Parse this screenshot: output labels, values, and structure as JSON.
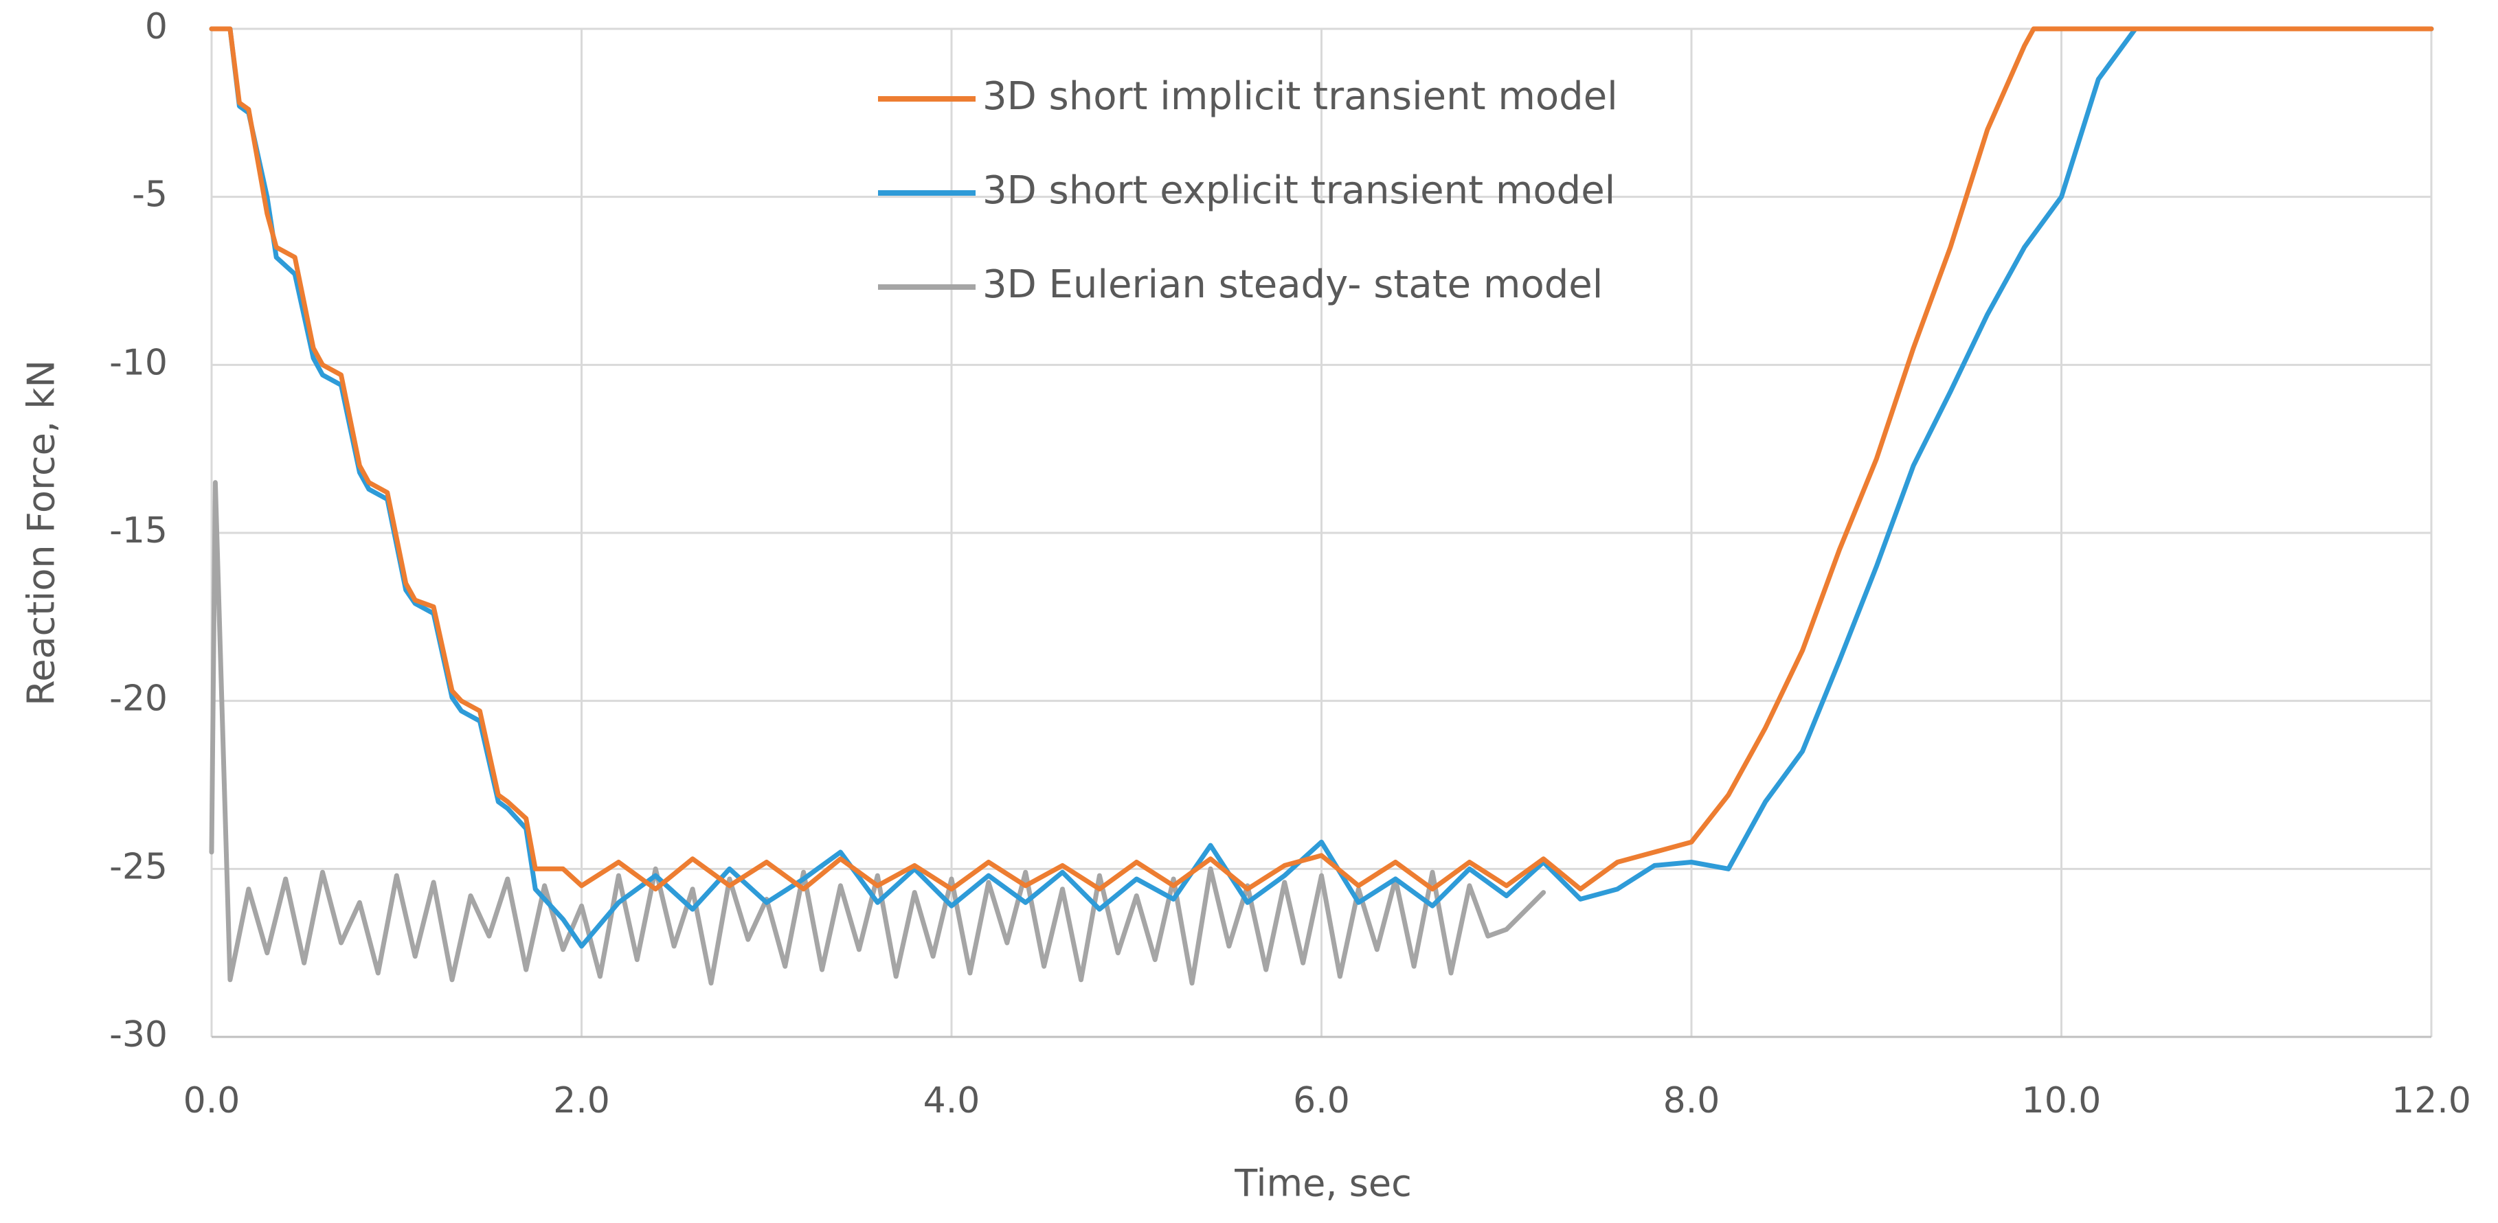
{
  "chart_data": {
    "type": "line",
    "xlabel": "Time, sec",
    "ylabel": "Reaction Force, kN",
    "xlim": [
      0,
      12
    ],
    "ylim": [
      -30,
      0
    ],
    "xticks": [
      {
        "value": 0,
        "label": "0.0"
      },
      {
        "value": 2,
        "label": "2.0"
      },
      {
        "value": 4,
        "label": "4.0"
      },
      {
        "value": 6,
        "label": "6.0"
      },
      {
        "value": 8,
        "label": "8.0"
      },
      {
        "value": 10,
        "label": "10.0"
      },
      {
        "value": 12,
        "label": "12.0"
      }
    ],
    "yticks": [
      0,
      -5,
      -10,
      -15,
      -20,
      -25,
      -30
    ],
    "grid": true,
    "series": [
      {
        "name": "3D short implicit transient model",
        "color": "#ed7d31",
        "x": [
          0,
          0.1,
          0.15,
          0.2,
          0.3,
          0.35,
          0.45,
          0.55,
          0.6,
          0.7,
          0.8,
          0.85,
          0.95,
          1.05,
          1.1,
          1.2,
          1.3,
          1.35,
          1.45,
          1.55,
          1.6,
          1.7,
          1.75,
          1.9,
          2.0,
          2.2,
          2.4,
          2.6,
          2.8,
          3.0,
          3.2,
          3.4,
          3.6,
          3.8,
          4.0,
          4.2,
          4.4,
          4.6,
          4.8,
          5.0,
          5.2,
          5.4,
          5.6,
          5.8,
          6.0,
          6.2,
          6.4,
          6.6,
          6.8,
          7.0,
          7.2,
          7.4,
          7.6,
          7.8,
          8.0,
          8.2,
          8.4,
          8.6,
          8.8,
          9.0,
          9.2,
          9.4,
          9.6,
          9.8,
          9.85,
          12.0
        ],
        "values": [
          0,
          0,
          -2.2,
          -2.4,
          -5.5,
          -6.5,
          -6.8,
          -9.5,
          -10,
          -10.3,
          -13,
          -13.5,
          -13.8,
          -16.5,
          -17,
          -17.2,
          -19.7,
          -20,
          -20.3,
          -22.8,
          -23,
          -23.5,
          -25,
          -25,
          -25.5,
          -24.8,
          -25.6,
          -24.7,
          -25.5,
          -24.8,
          -25.6,
          -24.7,
          -25.5,
          -24.9,
          -25.6,
          -24.8,
          -25.5,
          -24.9,
          -25.6,
          -24.8,
          -25.5,
          -24.7,
          -25.6,
          -24.9,
          -24.6,
          -25.5,
          -24.8,
          -25.6,
          -24.8,
          -25.5,
          -24.7,
          -25.6,
          -24.8,
          -24.5,
          -24.2,
          -22.8,
          -20.8,
          -18.5,
          -15.5,
          -12.8,
          -9.5,
          -6.5,
          -3.0,
          -0.5,
          0,
          0
        ]
      },
      {
        "name": "3D short explicit transient model",
        "color": "#2e9bd8",
        "x": [
          0,
          0.1,
          0.15,
          0.2,
          0.3,
          0.35,
          0.45,
          0.55,
          0.6,
          0.7,
          0.8,
          0.85,
          0.95,
          1.05,
          1.1,
          1.2,
          1.3,
          1.35,
          1.45,
          1.55,
          1.6,
          1.7,
          1.75,
          1.9,
          2.0,
          2.2,
          2.4,
          2.6,
          2.8,
          3.0,
          3.2,
          3.4,
          3.6,
          3.8,
          4.0,
          4.2,
          4.4,
          4.6,
          4.8,
          5.0,
          5.2,
          5.4,
          5.6,
          5.8,
          6.0,
          6.2,
          6.4,
          6.6,
          6.8,
          7.0,
          7.2,
          7.4,
          7.6,
          7.8,
          8.0,
          8.2,
          8.4,
          8.6,
          8.8,
          9.0,
          9.2,
          9.4,
          9.6,
          9.8,
          10.0,
          10.2,
          10.4,
          12.0
        ],
        "values": [
          0,
          0,
          -2.3,
          -2.5,
          -5.0,
          -6.8,
          -7.3,
          -9.8,
          -10.3,
          -10.6,
          -13.2,
          -13.7,
          -14.0,
          -16.7,
          -17.1,
          -17.4,
          -19.9,
          -20.3,
          -20.6,
          -23,
          -23.2,
          -23.8,
          -25.6,
          -26.5,
          -27.3,
          -26.0,
          -25.2,
          -26.2,
          -25.0,
          -26.0,
          -25.3,
          -24.5,
          -26.0,
          -25.0,
          -26.1,
          -25.2,
          -26.0,
          -25.1,
          -26.2,
          -25.3,
          -25.9,
          -24.3,
          -26.0,
          -25.2,
          -24.2,
          -26.0,
          -25.3,
          -26.1,
          -25.0,
          -25.8,
          -24.8,
          -25.9,
          -25.6,
          -24.9,
          -24.8,
          -25.0,
          -23.0,
          -21.5,
          -18.8,
          -16.0,
          -13.0,
          -10.8,
          -8.5,
          -6.5,
          -5.0,
          -1.5,
          0,
          0
        ]
      },
      {
        "name": "3D Eulerian steady- state model",
        "color": "#a5a5a5",
        "x": [
          0,
          0.02,
          0.1,
          0.2,
          0.3,
          0.4,
          0.5,
          0.6,
          0.7,
          0.8,
          0.9,
          1.0,
          1.1,
          1.2,
          1.3,
          1.4,
          1.5,
          1.6,
          1.7,
          1.8,
          1.9,
          2.0,
          2.1,
          2.2,
          2.3,
          2.4,
          2.5,
          2.6,
          2.7,
          2.8,
          2.9,
          3.0,
          3.1,
          3.2,
          3.3,
          3.4,
          3.5,
          3.6,
          3.7,
          3.8,
          3.9,
          4.0,
          4.1,
          4.2,
          4.3,
          4.4,
          4.5,
          4.6,
          4.7,
          4.8,
          4.9,
          5.0,
          5.1,
          5.2,
          5.3,
          5.4,
          5.5,
          5.6,
          5.7,
          5.8,
          5.9,
          6.0,
          6.1,
          6.2,
          6.3,
          6.4,
          6.5,
          6.6,
          6.7,
          6.8,
          6.9,
          7.0,
          7.2
        ],
        "values": [
          -24.5,
          -13.5,
          -28.3,
          -25.6,
          -27.5,
          -25.3,
          -27.8,
          -25.1,
          -27.2,
          -26.0,
          -28.1,
          -25.2,
          -27.6,
          -25.4,
          -28.3,
          -25.8,
          -27.0,
          -25.3,
          -28.0,
          -25.5,
          -27.4,
          -26.1,
          -28.2,
          -25.2,
          -27.7,
          -25.0,
          -27.3,
          -25.6,
          -28.4,
          -25.3,
          -27.1,
          -25.9,
          -27.9,
          -25.1,
          -28.0,
          -25.5,
          -27.4,
          -25.2,
          -28.2,
          -25.7,
          -27.6,
          -25.3,
          -28.1,
          -25.4,
          -27.2,
          -25.1,
          -27.9,
          -25.6,
          -28.3,
          -25.2,
          -27.5,
          -25.8,
          -27.7,
          -25.3,
          -28.4,
          -25.0,
          -27.3,
          -25.5,
          -28.0,
          -25.4,
          -27.8,
          -25.2,
          -28.2,
          -25.6,
          -27.4,
          -25.3,
          -27.9,
          -25.1,
          -28.1,
          -25.5,
          -27.0,
          -26.8,
          -25.7
        ]
      }
    ]
  }
}
